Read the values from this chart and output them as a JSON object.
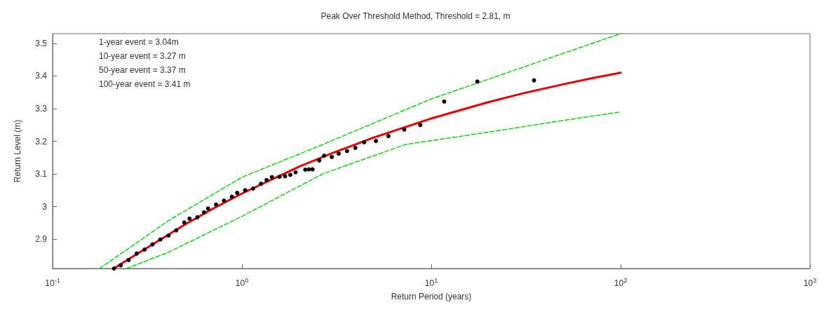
{
  "chart_data": {
    "type": "line",
    "title": "Peak Over Threshold Method, Threshold = 2.81, m",
    "xlabel": "Return Period (years)",
    "ylabel": "Return Level (m)",
    "annotations": [
      "1-year event = 3.04m",
      "10-year event = 3.27 m",
      "50-year event = 3.37 m",
      "100-year event = 3.41 m"
    ],
    "log": "x",
    "grid": false,
    "xlim": [
      0.1,
      1000
    ],
    "xticks": [
      {
        "value": 0.1,
        "label": "10$^{-1}$"
      },
      {
        "value": 1,
        "label": "10$^{0}$"
      },
      {
        "value": 10,
        "label": "10$^{1}$"
      },
      {
        "value": 100,
        "label": "10$^{2}$"
      },
      {
        "value": 1000,
        "label": "10$^{3}$"
      }
    ],
    "ylim": [
      2.81,
      3.53
    ],
    "yticks": [
      2.9,
      3,
      3.1,
      3.2,
      3.3,
      3.4,
      3.5
    ],
    "series": [
      {
        "color": "#00dd00",
        "line_style": "dashed",
        "marker": "none",
        "x": [
          0.177,
          0.25,
          0.41,
          1,
          2.67,
          10,
          20,
          50,
          100
        ],
        "values": [
          2.81,
          2.87,
          2.957,
          3.09,
          3.19,
          3.33,
          3.39,
          3.47,
          3.53
        ]
      },
      {
        "color": "#00dd00",
        "line_style": "dashed",
        "marker": "none",
        "x": [
          0.246,
          0.41,
          1,
          2.67,
          7.27,
          20,
          50,
          100
        ],
        "values": [
          2.81,
          2.86,
          2.97,
          3.1,
          3.19,
          3.228,
          3.264,
          3.29
        ]
      },
      {
        "color": "#ee0000",
        "line_style": "solid",
        "marker": "none",
        "x": [
          0.21,
          0.3,
          0.5,
          0.7,
          1,
          2,
          3,
          5,
          7,
          10,
          20,
          30,
          50,
          70,
          100
        ],
        "values": [
          2.81,
          2.866,
          2.945,
          2.993,
          3.04,
          3.122,
          3.164,
          3.212,
          3.24,
          3.27,
          3.32,
          3.346,
          3.375,
          3.393,
          3.41
        ]
      },
      {
        "type": "scatter",
        "color": "#000000",
        "marker": "circle",
        "x": [
          0.211,
          0.229,
          0.252,
          0.278,
          0.306,
          0.337,
          0.371,
          0.409,
          0.45,
          0.496,
          0.529,
          0.582,
          0.631,
          0.662,
          0.73,
          0.804,
          0.885,
          0.944,
          1.04,
          1.145,
          1.26,
          1.35,
          1.44,
          1.58,
          1.69,
          1.8,
          1.92,
          2.16,
          2.26,
          2.36,
          2.56,
          2.72,
          2.98,
          3.24,
          3.59,
          3.97,
          4.42,
          5.1,
          5.94,
          7.2,
          8.75,
          11.7,
          17.5,
          34.9
        ],
        "values": [
          2.81,
          2.82,
          2.836,
          2.856,
          2.868,
          2.884,
          2.899,
          2.911,
          2.927,
          2.951,
          2.963,
          2.967,
          2.982,
          2.994,
          3.006,
          3.018,
          3.03,
          3.042,
          3.05,
          3.055,
          3.07,
          3.081,
          3.09,
          3.091,
          3.093,
          3.097,
          3.105,
          3.113,
          3.114,
          3.114,
          3.141,
          3.156,
          3.152,
          3.162,
          3.17,
          3.18,
          3.197,
          3.201,
          3.216,
          3.236,
          3.25,
          3.322,
          3.383,
          3.387
        ]
      }
    ]
  }
}
